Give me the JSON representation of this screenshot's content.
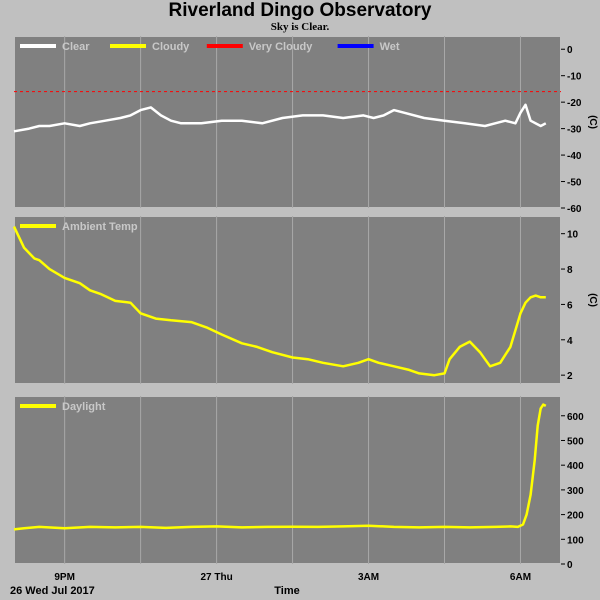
{
  "title": "Riverland Dingo Observatory",
  "subtitle": "Sky is Clear.",
  "footer": {
    "date_label": "26 Wed Jul 2017",
    "x_axis_title": "Time"
  },
  "x_ticks": [
    {
      "label": "9PM",
      "t": 0.5
    },
    {
      "label": "27 Thu",
      "t": 3.5
    },
    {
      "label": "3AM",
      "t": 6.5
    },
    {
      "label": "6AM",
      "t": 9.5
    }
  ],
  "colors": {
    "panel_bg": "#808080",
    "grid": "#a8a8a8",
    "frame": "#c0c0c0",
    "clear": "#ffffff",
    "cloudy": "#ffff00",
    "very_cloudy": "#ff0000",
    "wet": "#0000ff"
  },
  "chart_data": [
    {
      "type": "line",
      "panel": "sky",
      "ylabel": "(C)",
      "ylim": [
        -60,
        5
      ],
      "yticks": [
        0,
        -10,
        -20,
        -30,
        -40,
        -50,
        -60
      ],
      "legend": [
        {
          "name": "Clear",
          "color": "#ffffff"
        },
        {
          "name": "Cloudy",
          "color": "#ffff00"
        },
        {
          "name": "Very Cloudy",
          "color": "#ff0000"
        },
        {
          "name": "Wet",
          "color": "#0000ff"
        }
      ],
      "threshold": {
        "name": "Very Cloudy",
        "value": -16,
        "color": "#ff0000",
        "style": "dashed"
      },
      "series": [
        {
          "name": "Clear",
          "color": "#ffffff",
          "x": [
            -0.5,
            -0.2,
            0.0,
            0.2,
            0.5,
            0.8,
            1.0,
            1.3,
            1.6,
            1.8,
            2.0,
            2.2,
            2.4,
            2.6,
            2.8,
            3.2,
            3.6,
            4.0,
            4.4,
            4.8,
            5.2,
            5.6,
            6.0,
            6.4,
            6.6,
            6.8,
            7.0,
            7.2,
            7.6,
            8.0,
            8.4,
            8.8,
            9.0,
            9.2,
            9.4,
            9.5,
            9.6,
            9.7,
            9.9,
            10.0
          ],
          "y": [
            -31,
            -30,
            -29,
            -29,
            -28,
            -29,
            -28,
            -27,
            -26,
            -25,
            -23,
            -22,
            -25,
            -27,
            -28,
            -28,
            -27,
            -27,
            -28,
            -26,
            -25,
            -25,
            -26,
            -25,
            -26,
            -25,
            -23,
            -24,
            -26,
            -27,
            -28,
            -29,
            -28,
            -27,
            -28,
            -24,
            -21,
            -27,
            -29,
            -28
          ]
        }
      ]
    },
    {
      "type": "line",
      "panel": "ambient",
      "ylabel": "(C)",
      "ylim": [
        1.5,
        11
      ],
      "yticks": [
        2,
        4,
        6,
        8,
        10
      ],
      "legend": [
        {
          "name": "Ambient Temp",
          "color": "#ffff00"
        }
      ],
      "series": [
        {
          "name": "Ambient Temp",
          "color": "#ffff00",
          "x": [
            -0.5,
            -0.3,
            -0.1,
            0.0,
            0.2,
            0.5,
            0.8,
            1.0,
            1.2,
            1.5,
            1.8,
            2.0,
            2.3,
            2.6,
            3.0,
            3.3,
            3.6,
            4.0,
            4.3,
            4.6,
            5.0,
            5.3,
            5.6,
            6.0,
            6.3,
            6.5,
            6.7,
            7.0,
            7.3,
            7.5,
            7.8,
            8.0,
            8.1,
            8.3,
            8.5,
            8.7,
            8.9,
            9.1,
            9.3,
            9.5,
            9.6,
            9.7,
            9.8,
            9.9,
            10.0
          ],
          "y": [
            10.4,
            9.2,
            8.6,
            8.5,
            8.0,
            7.5,
            7.2,
            6.8,
            6.6,
            6.2,
            6.1,
            5.5,
            5.2,
            5.1,
            5.0,
            4.7,
            4.3,
            3.8,
            3.6,
            3.3,
            3.0,
            2.9,
            2.7,
            2.5,
            2.7,
            2.9,
            2.7,
            2.5,
            2.3,
            2.1,
            2.0,
            2.1,
            2.9,
            3.6,
            3.9,
            3.3,
            2.5,
            2.7,
            3.6,
            5.5,
            6.1,
            6.4,
            6.5,
            6.4,
            6.4
          ]
        }
      ]
    },
    {
      "type": "line",
      "panel": "daylight",
      "ylim": [
        0,
        680
      ],
      "yticks": [
        0,
        100,
        200,
        300,
        400,
        500,
        600
      ],
      "legend": [
        {
          "name": "Daylight",
          "color": "#ffff00"
        }
      ],
      "series": [
        {
          "name": "Daylight",
          "color": "#ffff00",
          "x": [
            -0.5,
            -0.3,
            0.0,
            0.5,
            1.0,
            1.5,
            2.0,
            2.5,
            3.0,
            3.5,
            4.0,
            4.5,
            5.0,
            5.5,
            6.0,
            6.5,
            7.0,
            7.5,
            8.0,
            8.5,
            9.0,
            9.3,
            9.45,
            9.55,
            9.62,
            9.7,
            9.78,
            9.84,
            9.9,
            9.95,
            10.0
          ],
          "y": [
            140,
            145,
            150,
            145,
            150,
            148,
            150,
            146,
            150,
            152,
            148,
            150,
            151,
            150,
            152,
            155,
            150,
            148,
            150,
            148,
            150,
            152,
            150,
            160,
            200,
            280,
            420,
            560,
            630,
            645,
            640
          ]
        }
      ]
    }
  ]
}
